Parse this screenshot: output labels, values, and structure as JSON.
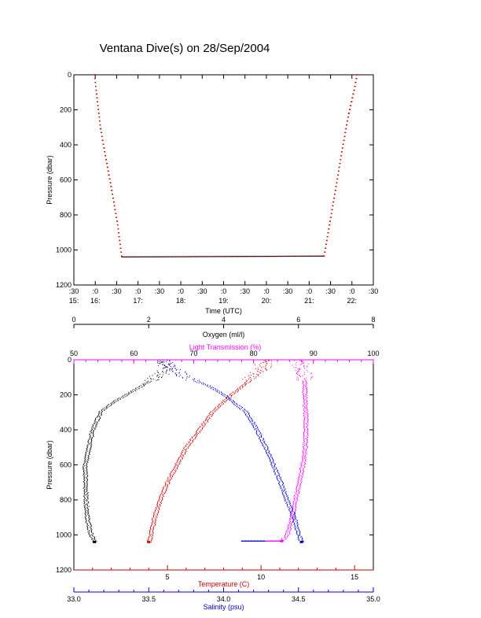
{
  "title": "Ventana Dive(s) on 28/Sep/2004",
  "colors": {
    "black": "#000000",
    "red": "#cc0000",
    "magenta": "#ff00ff",
    "blue": "#0000cc"
  },
  "chart_data": [
    {
      "type": "line",
      "title": "Ventana Dive(s) on 28/Sep/2004",
      "xlabel": "Time (UTC)",
      "ylabel": "Pressure (dbar)",
      "xlim": [
        15.5,
        22.5
      ],
      "ylim": [
        1200,
        0
      ],
      "y_ticks": [
        "0",
        "200",
        "400",
        "600",
        "800",
        "1000",
        "1200"
      ],
      "x_ticks_top": [
        ":30",
        ":0",
        ":30",
        ":0",
        ":30",
        ":0",
        ":30",
        ":0",
        ":30",
        ":0",
        ":30",
        ":0",
        ":30",
        ":0",
        ":30"
      ],
      "x_ticks_bottom": [
        "15:",
        "16:",
        "17:",
        "18:",
        "19:",
        "20:",
        "21:",
        "22:"
      ],
      "series": [
        {
          "x": [
            15.98,
            16.05,
            16.12,
            16.25,
            16.38,
            16.52,
            16.62,
            21.35,
            21.48,
            21.62,
            21.77,
            21.92,
            22.05,
            22.12
          ],
          "y": [
            0,
            150,
            300,
            480,
            650,
            850,
            1040,
            1035,
            850,
            650,
            430,
            230,
            90,
            0
          ]
        }
      ]
    },
    {
      "type": "scatter",
      "ylabel": "Pressure (dbar)",
      "ylim": [
        1200,
        0
      ],
      "y_ticks": [
        "0",
        "200",
        "400",
        "600",
        "800",
        "1000",
        "1200"
      ],
      "axes": {
        "oxygen": {
          "label": "Oxygen (ml/l)",
          "range": [
            0,
            8
          ],
          "ticks": [
            "0",
            "2",
            "4",
            "6",
            "8"
          ],
          "color": "#000000"
        },
        "light": {
          "label": "Light Transmission (%)",
          "range": [
            50,
            100
          ],
          "ticks": [
            "50",
            "60",
            "70",
            "80",
            "90",
            "100"
          ],
          "color": "#ff00ff"
        },
        "temperature": {
          "label": "Temperature (C)",
          "range": [
            0,
            16
          ],
          "ticks": [
            "5",
            "10",
            "15"
          ],
          "color": "#cc0000"
        },
        "salinity": {
          "label": "Salinity (psu)",
          "range": [
            33.0,
            35.0
          ],
          "ticks": [
            "33.0",
            "33.5",
            "34.0",
            "34.5",
            "35.0"
          ],
          "color": "#0000cc"
        }
      },
      "series": [
        {
          "axis": "oxygen",
          "color": "#000000",
          "depth": [
            10,
            50,
            100,
            150,
            200,
            250,
            300,
            400,
            500,
            600,
            700,
            800,
            900,
            1000,
            1040
          ],
          "values": [
            2.4,
            2.5,
            2.2,
            1.8,
            1.4,
            1.0,
            0.7,
            0.5,
            0.4,
            0.3,
            0.3,
            0.32,
            0.35,
            0.45,
            0.55
          ]
        },
        {
          "axis": "light",
          "color": "#ff00ff",
          "depth": [
            0,
            50,
            100,
            200,
            300,
            400,
            500,
            600,
            700,
            800,
            900,
            1000,
            1035
          ],
          "values": [
            87.5,
            88.0,
            88.5,
            88.5,
            88.7,
            88.7,
            88.6,
            88.2,
            87.6,
            87.0,
            86.4,
            85.6,
            84.7
          ]
        },
        {
          "axis": "temperature",
          "color": "#cc0000",
          "depth": [
            0,
            50,
            100,
            150,
            200,
            300,
            400,
            500,
            600,
            700,
            800,
            900,
            1000,
            1040
          ],
          "values": [
            10.3,
            10.0,
            9.6,
            9.0,
            8.4,
            7.4,
            6.7,
            6.0,
            5.5,
            5.0,
            4.6,
            4.3,
            4.1,
            4.0
          ]
        },
        {
          "axis": "salinity",
          "color": "#0000cc",
          "depth": [
            0,
            50,
            100,
            150,
            200,
            300,
            400,
            500,
            600,
            700,
            800,
            900,
            1000,
            1040
          ],
          "values": [
            33.6,
            33.65,
            33.75,
            33.9,
            34.0,
            34.15,
            34.22,
            34.28,
            34.33,
            34.38,
            34.42,
            34.47,
            34.5,
            34.52
          ]
        }
      ]
    }
  ]
}
